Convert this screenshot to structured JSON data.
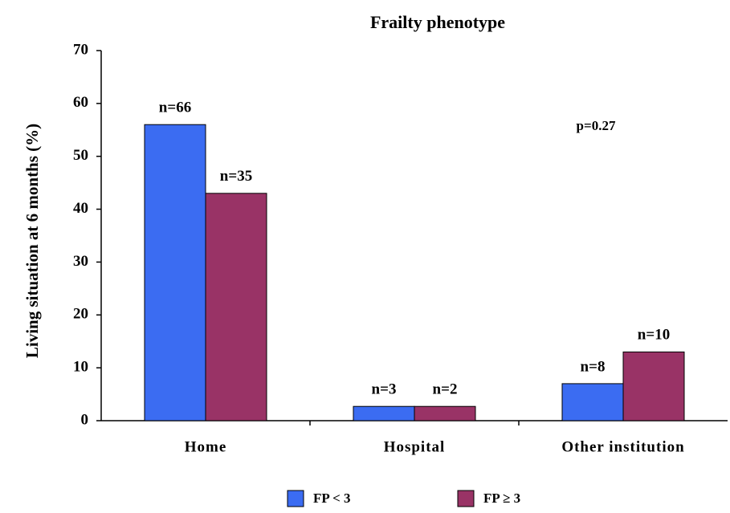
{
  "chart_data": {
    "type": "bar",
    "title": "Frailty phenotype",
    "y_label": "Living situation at 6 months (%)",
    "categories": [
      "Home",
      "Hospital",
      "Other institution"
    ],
    "series": [
      {
        "name": "FP < 3",
        "color": "#3b6cf2",
        "values": [
          56,
          2.7,
          7
        ],
        "annotations": [
          "n=66",
          "n=3",
          "n=8"
        ]
      },
      {
        "name": "FP ≥ 3",
        "color": "#993366",
        "values": [
          43,
          2.7,
          13
        ],
        "annotations": [
          "n=35",
          "n=2",
          "n=10"
        ]
      }
    ],
    "annotation": "p=0.27",
    "ylim": [
      0,
      70
    ],
    "yticks": [
      0,
      10,
      20,
      30,
      40,
      50,
      60,
      70
    ],
    "grid": false,
    "legend": "bottom"
  }
}
